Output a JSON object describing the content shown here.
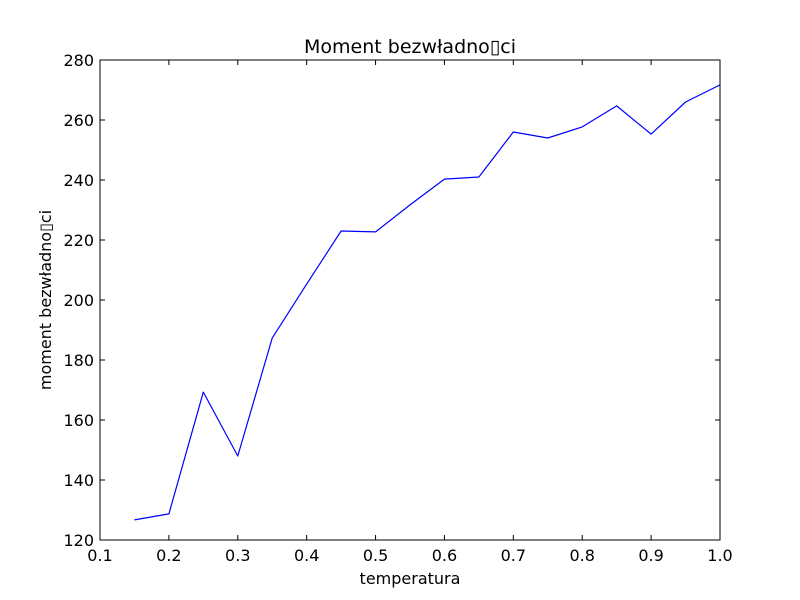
{
  "chart_data": {
    "type": "line",
    "title": "Moment bezwładno▯ci",
    "xlabel": "temperatura",
    "ylabel": "moment bezwładno▯ci",
    "xlim": [
      0.1,
      1.0
    ],
    "ylim": [
      120,
      280
    ],
    "x_ticks": [
      0.1,
      0.2,
      0.3,
      0.4,
      0.5,
      0.6,
      0.7,
      0.8,
      0.9,
      1.0
    ],
    "x_tick_labels": [
      "0.1",
      "0.2",
      "0.3",
      "0.4",
      "0.5",
      "0.6",
      "0.7",
      "0.8",
      "0.9",
      "1.0"
    ],
    "y_ticks": [
      120,
      140,
      160,
      180,
      200,
      220,
      240,
      260,
      280
    ],
    "y_tick_labels": [
      "120",
      "140",
      "160",
      "180",
      "200",
      "220",
      "240",
      "260",
      "280"
    ],
    "grid": false,
    "series": [
      {
        "color": "#0000ff",
        "x": [
          0.15,
          0.2,
          0.25,
          0.3,
          0.35,
          0.4,
          0.45,
          0.5,
          0.55,
          0.6,
          0.65,
          0.7,
          0.75,
          0.8,
          0.85,
          0.9,
          0.95,
          1.0
        ],
        "y": [
          126.7,
          128.7,
          169.3,
          148.0,
          187.3,
          205.3,
          223.0,
          222.7,
          231.7,
          240.3,
          241.0,
          256.0,
          254.0,
          257.7,
          264.7,
          255.3,
          266.0,
          271.7
        ]
      }
    ]
  }
}
